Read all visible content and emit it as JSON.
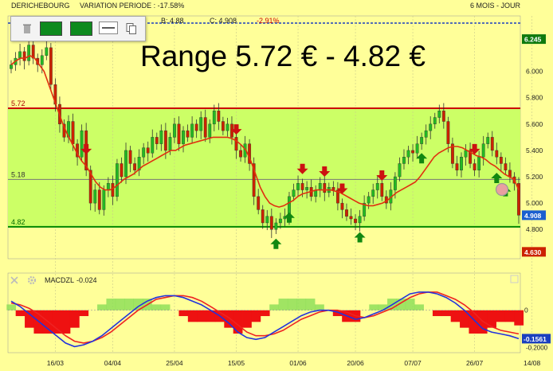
{
  "header": {
    "name": "DERICHEBOURG",
    "variation": "VARIATION PERIODE : -17.58%",
    "bid": "B: 4.88",
    "close": "C: 4.908",
    "change": "-2.91%",
    "period": "6 MOIS - JOUR"
  },
  "toolbar": {
    "trash_icon": "trash-icon",
    "color_buttons": [
      "#0e8a1e",
      "#0e8a1e"
    ],
    "line_icon": "line-style-icon",
    "copy_icon": "copy-icon"
  },
  "annotation": "Range 5.72 € - 4.82 €",
  "colors": {
    "background": "#ffff99",
    "range_fill": "#ccff66",
    "upper_line": "#cc0000",
    "lower_line": "#008800",
    "ma_line": "#e03010",
    "up_candle": "#22bb22",
    "down_candle": "#cc2200",
    "sell_arrow": "#cc1111",
    "buy_arrow": "#118811",
    "macd_line": "#2233dd",
    "signal_line": "#ee2222"
  },
  "chart_data": [
    {
      "type": "candlestick",
      "y_axis_ticks": [
        "6.245",
        "6.000",
        "5.800",
        "5.600",
        "5.400",
        "5.200",
        "5.000",
        "4.800"
      ],
      "ylim": [
        4.62,
        6.3
      ],
      "x_tick_labels": [
        "16/03",
        "04/04",
        "25/04",
        "15/05",
        "01/06",
        "20/06",
        "07/07",
        "26/07",
        "14/08"
      ],
      "x_tick_index": [
        10,
        23,
        37,
        51,
        65,
        78,
        91,
        105,
        118
      ],
      "levels": [
        {
          "label": "5.72",
          "value": 5.72
        },
        {
          "label": "5.18",
          "value": 5.18
        },
        {
          "label": "4.82",
          "value": 4.82
        }
      ],
      "price_tags": [
        {
          "label": "6.245",
          "value": 6.245,
          "color": "#0e7a0e"
        },
        {
          "label": "4.908",
          "value": 4.908,
          "color": "#1a5fd0"
        },
        {
          "label": "4.630",
          "value": 4.63,
          "color": "#cc2200"
        }
      ],
      "close": [
        6.05,
        6.1,
        6.15,
        6.08,
        6.2,
        6.1,
        6.05,
        6.12,
        6.18,
        5.9,
        5.75,
        5.6,
        5.5,
        5.62,
        5.45,
        5.35,
        5.55,
        5.25,
        5.0,
        5.1,
        4.95,
        5.1,
        5.15,
        5.05,
        5.3,
        5.2,
        5.4,
        5.3,
        5.25,
        5.35,
        5.42,
        5.38,
        5.5,
        5.45,
        5.55,
        5.4,
        5.5,
        5.6,
        5.45,
        5.55,
        5.5,
        5.6,
        5.55,
        5.65,
        5.5,
        5.6,
        5.7,
        5.62,
        5.55,
        5.6,
        5.5,
        5.4,
        5.35,
        5.45,
        5.3,
        5.05,
        4.95,
        4.85,
        4.9,
        4.8,
        4.85,
        4.88,
        4.9,
        5.05,
        5.1,
        5.15,
        5.1,
        5.12,
        5.05,
        5.1,
        5.15,
        5.08,
        5.12,
        5.1,
        5.0,
        4.95,
        4.9,
        4.88,
        4.85,
        4.9,
        5.0,
        5.05,
        5.1,
        5.15,
        5.05,
        5.0,
        5.1,
        5.2,
        5.3,
        5.35,
        5.4,
        5.38,
        5.45,
        5.5,
        5.55,
        5.6,
        5.65,
        5.7,
        5.62,
        5.45,
        5.3,
        5.25,
        5.35,
        5.4,
        5.3,
        5.25,
        5.35,
        5.45,
        5.5,
        5.4,
        5.35,
        5.3,
        5.25,
        5.2,
        5.15,
        4.908
      ],
      "moving_average": [
        6.05,
        6.08,
        6.1,
        6.1,
        6.12,
        6.1,
        6.05,
        6.0,
        5.9,
        5.8,
        5.7,
        5.6,
        5.52,
        5.45,
        5.38,
        5.32,
        5.28,
        5.22,
        5.16,
        5.12,
        5.1,
        5.1,
        5.12,
        5.15,
        5.18,
        5.2,
        5.22,
        5.25,
        5.28,
        5.3,
        5.32,
        5.34,
        5.36,
        5.38,
        5.4,
        5.4,
        5.42,
        5.44,
        5.45,
        5.46,
        5.47,
        5.48,
        5.49,
        5.5,
        5.5,
        5.5,
        5.5,
        5.49,
        5.47,
        5.44,
        5.4,
        5.32,
        5.22,
        5.12,
        5.05,
        5.0,
        4.98,
        4.97,
        4.98,
        5.0,
        5.02,
        5.05,
        5.07,
        5.08,
        5.09,
        5.1,
        5.1,
        5.1,
        5.1,
        5.09,
        5.08,
        5.06,
        5.04,
        5.02,
        5.0,
        4.99,
        4.98,
        4.98,
        4.99,
        5.0,
        5.02,
        5.05,
        5.08,
        5.1,
        5.12,
        5.14,
        5.16,
        5.2,
        5.25,
        5.3,
        5.35,
        5.38,
        5.4,
        5.42,
        5.43,
        5.43,
        5.42,
        5.4,
        5.38,
        5.36,
        5.35,
        5.33,
        5.3,
        5.28,
        5.25,
        5.22,
        5.2,
        5.18,
        5.1
      ],
      "sell_signals": [
        17,
        51,
        66,
        71,
        75,
        84,
        105
      ],
      "buy_signals": [
        60,
        63,
        79,
        93,
        110,
        112,
        123
      ]
    },
    {
      "type": "line",
      "title": "MACDZL",
      "value_label": "-0.024",
      "y_axis_ticks": [
        "0",
        "-0.1561",
        "-0.2000"
      ],
      "ylim": [
        -0.22,
        0.13
      ],
      "macd": [
        0.05,
        0.02,
        -0.02,
        -0.06,
        -0.1,
        -0.14,
        -0.18,
        -0.2,
        -0.19,
        -0.17,
        -0.14,
        -0.1,
        -0.06,
        -0.02,
        0.02,
        0.05,
        0.07,
        0.08,
        0.08,
        0.07,
        0.05,
        0.03,
        0.0,
        -0.03,
        -0.07,
        -0.12,
        -0.15,
        -0.16,
        -0.15,
        -0.12,
        -0.09,
        -0.06,
        -0.03,
        -0.01,
        0.0,
        0.0,
        -0.01,
        -0.03,
        -0.05,
        -0.04,
        -0.02,
        0.0,
        0.03,
        0.06,
        0.09,
        0.1,
        0.1,
        0.09,
        0.07,
        0.04,
        0.0,
        -0.05,
        -0.1,
        -0.12,
        -0.13,
        -0.14,
        -0.156
      ],
      "signal": [
        0.04,
        0.03,
        0.01,
        -0.02,
        -0.06,
        -0.1,
        -0.14,
        -0.17,
        -0.18,
        -0.17,
        -0.15,
        -0.12,
        -0.08,
        -0.04,
        0.0,
        0.03,
        0.06,
        0.07,
        0.08,
        0.08,
        0.07,
        0.05,
        0.02,
        -0.01,
        -0.04,
        -0.08,
        -0.12,
        -0.14,
        -0.14,
        -0.13,
        -0.11,
        -0.08,
        -0.05,
        -0.03,
        -0.01,
        0.0,
        0.0,
        -0.01,
        -0.03,
        -0.04,
        -0.03,
        -0.01,
        0.01,
        0.04,
        0.07,
        0.09,
        0.1,
        0.1,
        0.08,
        0.06,
        0.03,
        -0.01,
        -0.06,
        -0.09,
        -0.11,
        -0.12,
        -0.13
      ],
      "histogram": [
        0.01,
        -0.01,
        -0.03,
        -0.04,
        -0.04,
        -0.04,
        -0.04,
        -0.03,
        -0.01,
        0.0,
        0.01,
        0.02,
        0.02,
        0.02,
        0.02,
        0.02,
        0.01,
        0.01,
        0.0,
        -0.01,
        -0.02,
        -0.02,
        -0.02,
        -0.02,
        -0.03,
        -0.04,
        -0.03,
        -0.02,
        -0.01,
        0.01,
        0.02,
        0.02,
        0.02,
        0.02,
        0.01,
        0.0,
        -0.01,
        -0.02,
        -0.02,
        0.0,
        0.01,
        0.01,
        0.02,
        0.02,
        0.02,
        0.01,
        0.0,
        -0.01,
        -0.01,
        -0.02,
        -0.03,
        -0.04,
        -0.04,
        -0.03,
        -0.02,
        -0.02,
        -0.026
      ]
    }
  ]
}
